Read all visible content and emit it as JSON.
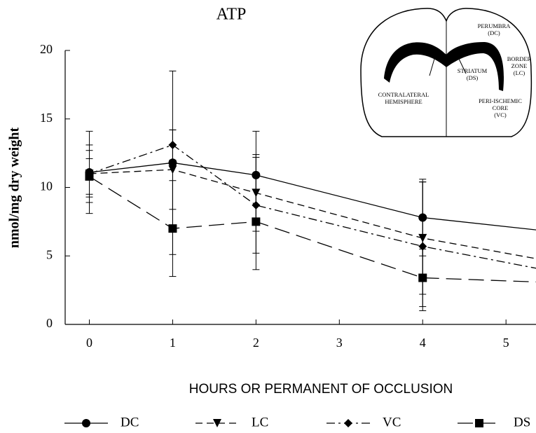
{
  "chart_data": {
    "type": "line",
    "title": "ATP",
    "y_label": "nmol/mg dry weight",
    "x_label": "HOURS OR PERMANENT OF OCCLUSION",
    "x": [
      0,
      1,
      2,
      4,
      5.36
    ],
    "series": [
      {
        "name": "DC",
        "color": "#000000",
        "dash": "none",
        "marker": "circle",
        "values": [
          11.1,
          11.8,
          10.9,
          7.8,
          6.9
        ],
        "errors": [
          3.0,
          6.7,
          3.2,
          2.8,
          null
        ]
      },
      {
        "name": "LC",
        "color": "#000000",
        "dash": "10 6",
        "marker": "triangle-down",
        "values": [
          11.0,
          11.3,
          9.6,
          6.3,
          4.8
        ],
        "errors": [
          1.7,
          2.9,
          2.8,
          4.1,
          null
        ]
      },
      {
        "name": "VC",
        "color": "#000000",
        "dash": "12 5 3 5",
        "marker": "diamond",
        "values": [
          11.0,
          13.1,
          8.7,
          5.7,
          4.1
        ],
        "errors": [
          2.1,
          1.1,
          3.5,
          4.7,
          null
        ]
      },
      {
        "name": "DS",
        "color": "#000000",
        "dash": "22 10",
        "marker": "square",
        "values": [
          10.8,
          7.0,
          7.5,
          3.4,
          3.1
        ],
        "errors": [
          1.3,
          3.5,
          3.5,
          2.1,
          null
        ]
      }
    ],
    "xlim": [
      -0.29,
      5.36
    ],
    "xticks": [
      0,
      1,
      2,
      3,
      4,
      5
    ],
    "ylim": [
      0,
      20
    ],
    "yticks": [
      0,
      5,
      10,
      15,
      20
    ],
    "grid": false
  },
  "inset": {
    "labels": [
      [
        "PERUMBRA",
        "(DC)"
      ],
      [
        "BORDER",
        "ZONE",
        "(LC)"
      ],
      [
        "STRIATUM",
        "(DS)"
      ],
      [
        "CONTRALATERAL",
        "HEMISPHERE"
      ],
      [
        "PERI-ISCHEMIC",
        "CORE",
        "(VC)"
      ]
    ]
  }
}
